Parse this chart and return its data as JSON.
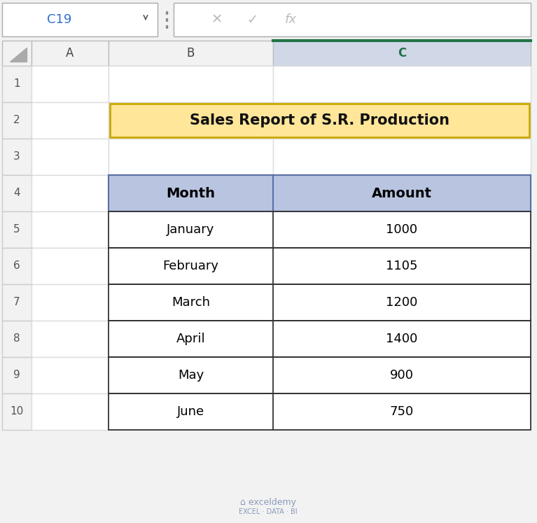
{
  "title": "Sales Report of S.R. Production",
  "title_bg": "#FFE699",
  "title_border": "#C8A800",
  "headers": [
    "Month",
    "Amount"
  ],
  "months": [
    "January",
    "February",
    "March",
    "April",
    "May",
    "June"
  ],
  "amounts": [
    "1000",
    "1105",
    "1200",
    "1400",
    "900",
    "750"
  ],
  "header_bg": "#B8C4E0",
  "cell_bg": "#FFFFFF",
  "cell_border": "#333333",
  "excel_bg": "#F2F2F2",
  "name_box_text": "C19",
  "exceldemy_color": "#8899BB",
  "green_border": "#217346",
  "col_c_header_bg": "#D0D8E8"
}
